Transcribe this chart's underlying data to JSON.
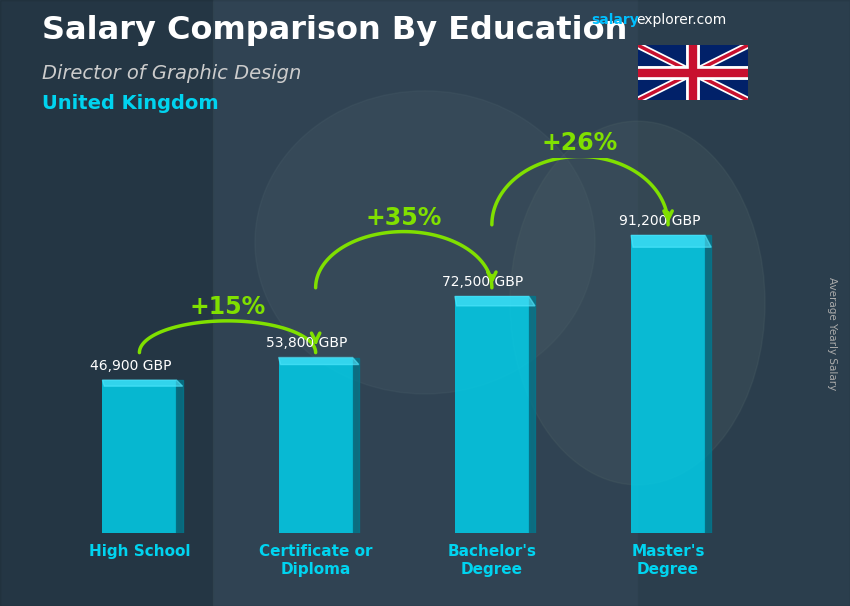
{
  "title": "Salary Comparison By Education",
  "subtitle": "Director of Graphic Design",
  "country": "United Kingdom",
  "categories": [
    "High School",
    "Certificate or\nDiploma",
    "Bachelor's\nDegree",
    "Master's\nDegree"
  ],
  "values": [
    46900,
    53800,
    72500,
    91200
  ],
  "value_labels": [
    "46,900 GBP",
    "53,800 GBP",
    "72,500 GBP",
    "91,200 GBP"
  ],
  "pct_changes": [
    "+15%",
    "+35%",
    "+26%"
  ],
  "bar_color": "#00D4F0",
  "bar_alpha": 0.82,
  "title_color": "#FFFFFF",
  "subtitle_color": "#CCCCCC",
  "country_color": "#00D4F0",
  "category_color": "#00D4F0",
  "pct_color": "#80E000",
  "salary_label_color": "#FFFFFF",
  "brand_salary_color": "#00BFFF",
  "brand_explorer_color": "#FFFFFF",
  "background_color": "#3a5068",
  "avg_salary_color": "#AAAAAA",
  "ylim": [
    0,
    115000
  ]
}
